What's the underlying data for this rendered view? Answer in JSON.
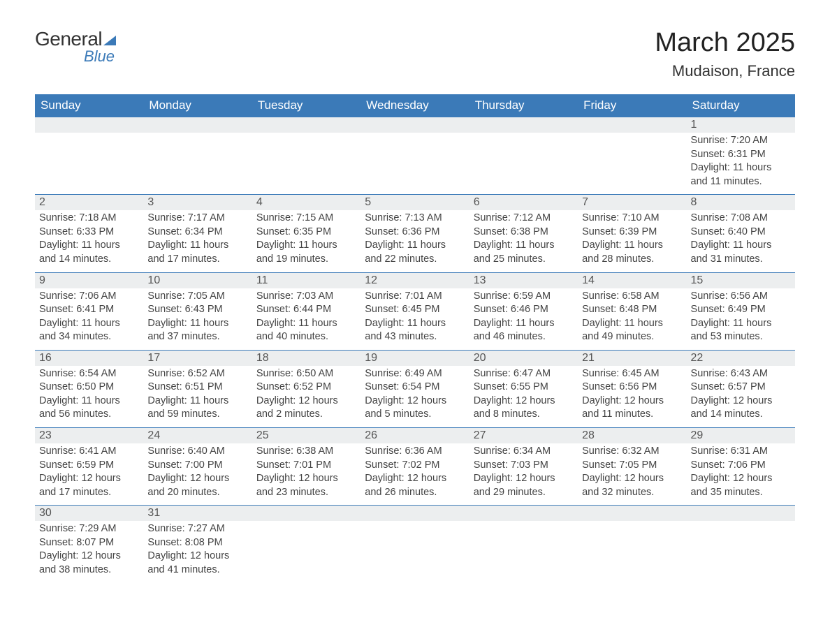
{
  "logo": {
    "general": "General",
    "blue": "Blue"
  },
  "title": "March 2025",
  "location": "Mudaison, France",
  "colors": {
    "header_bg": "#3b7ab8",
    "header_text": "#ffffff",
    "daynum_bg": "#eceeef",
    "border": "#3b7ab8",
    "text": "#444444",
    "logo_blue": "#3b7ab8"
  },
  "day_headers": [
    "Sunday",
    "Monday",
    "Tuesday",
    "Wednesday",
    "Thursday",
    "Friday",
    "Saturday"
  ],
  "weeks": [
    [
      null,
      null,
      null,
      null,
      null,
      null,
      {
        "n": "1",
        "sunrise": "Sunrise: 7:20 AM",
        "sunset": "Sunset: 6:31 PM",
        "dl1": "Daylight: 11 hours",
        "dl2": "and 11 minutes."
      }
    ],
    [
      {
        "n": "2",
        "sunrise": "Sunrise: 7:18 AM",
        "sunset": "Sunset: 6:33 PM",
        "dl1": "Daylight: 11 hours",
        "dl2": "and 14 minutes."
      },
      {
        "n": "3",
        "sunrise": "Sunrise: 7:17 AM",
        "sunset": "Sunset: 6:34 PM",
        "dl1": "Daylight: 11 hours",
        "dl2": "and 17 minutes."
      },
      {
        "n": "4",
        "sunrise": "Sunrise: 7:15 AM",
        "sunset": "Sunset: 6:35 PM",
        "dl1": "Daylight: 11 hours",
        "dl2": "and 19 minutes."
      },
      {
        "n": "5",
        "sunrise": "Sunrise: 7:13 AM",
        "sunset": "Sunset: 6:36 PM",
        "dl1": "Daylight: 11 hours",
        "dl2": "and 22 minutes."
      },
      {
        "n": "6",
        "sunrise": "Sunrise: 7:12 AM",
        "sunset": "Sunset: 6:38 PM",
        "dl1": "Daylight: 11 hours",
        "dl2": "and 25 minutes."
      },
      {
        "n": "7",
        "sunrise": "Sunrise: 7:10 AM",
        "sunset": "Sunset: 6:39 PM",
        "dl1": "Daylight: 11 hours",
        "dl2": "and 28 minutes."
      },
      {
        "n": "8",
        "sunrise": "Sunrise: 7:08 AM",
        "sunset": "Sunset: 6:40 PM",
        "dl1": "Daylight: 11 hours",
        "dl2": "and 31 minutes."
      }
    ],
    [
      {
        "n": "9",
        "sunrise": "Sunrise: 7:06 AM",
        "sunset": "Sunset: 6:41 PM",
        "dl1": "Daylight: 11 hours",
        "dl2": "and 34 minutes."
      },
      {
        "n": "10",
        "sunrise": "Sunrise: 7:05 AM",
        "sunset": "Sunset: 6:43 PM",
        "dl1": "Daylight: 11 hours",
        "dl2": "and 37 minutes."
      },
      {
        "n": "11",
        "sunrise": "Sunrise: 7:03 AM",
        "sunset": "Sunset: 6:44 PM",
        "dl1": "Daylight: 11 hours",
        "dl2": "and 40 minutes."
      },
      {
        "n": "12",
        "sunrise": "Sunrise: 7:01 AM",
        "sunset": "Sunset: 6:45 PM",
        "dl1": "Daylight: 11 hours",
        "dl2": "and 43 minutes."
      },
      {
        "n": "13",
        "sunrise": "Sunrise: 6:59 AM",
        "sunset": "Sunset: 6:46 PM",
        "dl1": "Daylight: 11 hours",
        "dl2": "and 46 minutes."
      },
      {
        "n": "14",
        "sunrise": "Sunrise: 6:58 AM",
        "sunset": "Sunset: 6:48 PM",
        "dl1": "Daylight: 11 hours",
        "dl2": "and 49 minutes."
      },
      {
        "n": "15",
        "sunrise": "Sunrise: 6:56 AM",
        "sunset": "Sunset: 6:49 PM",
        "dl1": "Daylight: 11 hours",
        "dl2": "and 53 minutes."
      }
    ],
    [
      {
        "n": "16",
        "sunrise": "Sunrise: 6:54 AM",
        "sunset": "Sunset: 6:50 PM",
        "dl1": "Daylight: 11 hours",
        "dl2": "and 56 minutes."
      },
      {
        "n": "17",
        "sunrise": "Sunrise: 6:52 AM",
        "sunset": "Sunset: 6:51 PM",
        "dl1": "Daylight: 11 hours",
        "dl2": "and 59 minutes."
      },
      {
        "n": "18",
        "sunrise": "Sunrise: 6:50 AM",
        "sunset": "Sunset: 6:52 PM",
        "dl1": "Daylight: 12 hours",
        "dl2": "and 2 minutes."
      },
      {
        "n": "19",
        "sunrise": "Sunrise: 6:49 AM",
        "sunset": "Sunset: 6:54 PM",
        "dl1": "Daylight: 12 hours",
        "dl2": "and 5 minutes."
      },
      {
        "n": "20",
        "sunrise": "Sunrise: 6:47 AM",
        "sunset": "Sunset: 6:55 PM",
        "dl1": "Daylight: 12 hours",
        "dl2": "and 8 minutes."
      },
      {
        "n": "21",
        "sunrise": "Sunrise: 6:45 AM",
        "sunset": "Sunset: 6:56 PM",
        "dl1": "Daylight: 12 hours",
        "dl2": "and 11 minutes."
      },
      {
        "n": "22",
        "sunrise": "Sunrise: 6:43 AM",
        "sunset": "Sunset: 6:57 PM",
        "dl1": "Daylight: 12 hours",
        "dl2": "and 14 minutes."
      }
    ],
    [
      {
        "n": "23",
        "sunrise": "Sunrise: 6:41 AM",
        "sunset": "Sunset: 6:59 PM",
        "dl1": "Daylight: 12 hours",
        "dl2": "and 17 minutes."
      },
      {
        "n": "24",
        "sunrise": "Sunrise: 6:40 AM",
        "sunset": "Sunset: 7:00 PM",
        "dl1": "Daylight: 12 hours",
        "dl2": "and 20 minutes."
      },
      {
        "n": "25",
        "sunrise": "Sunrise: 6:38 AM",
        "sunset": "Sunset: 7:01 PM",
        "dl1": "Daylight: 12 hours",
        "dl2": "and 23 minutes."
      },
      {
        "n": "26",
        "sunrise": "Sunrise: 6:36 AM",
        "sunset": "Sunset: 7:02 PM",
        "dl1": "Daylight: 12 hours",
        "dl2": "and 26 minutes."
      },
      {
        "n": "27",
        "sunrise": "Sunrise: 6:34 AM",
        "sunset": "Sunset: 7:03 PM",
        "dl1": "Daylight: 12 hours",
        "dl2": "and 29 minutes."
      },
      {
        "n": "28",
        "sunrise": "Sunrise: 6:32 AM",
        "sunset": "Sunset: 7:05 PM",
        "dl1": "Daylight: 12 hours",
        "dl2": "and 32 minutes."
      },
      {
        "n": "29",
        "sunrise": "Sunrise: 6:31 AM",
        "sunset": "Sunset: 7:06 PM",
        "dl1": "Daylight: 12 hours",
        "dl2": "and 35 minutes."
      }
    ],
    [
      {
        "n": "30",
        "sunrise": "Sunrise: 7:29 AM",
        "sunset": "Sunset: 8:07 PM",
        "dl1": "Daylight: 12 hours",
        "dl2": "and 38 minutes."
      },
      {
        "n": "31",
        "sunrise": "Sunrise: 7:27 AM",
        "sunset": "Sunset: 8:08 PM",
        "dl1": "Daylight: 12 hours",
        "dl2": "and 41 minutes."
      },
      null,
      null,
      null,
      null,
      null
    ]
  ]
}
